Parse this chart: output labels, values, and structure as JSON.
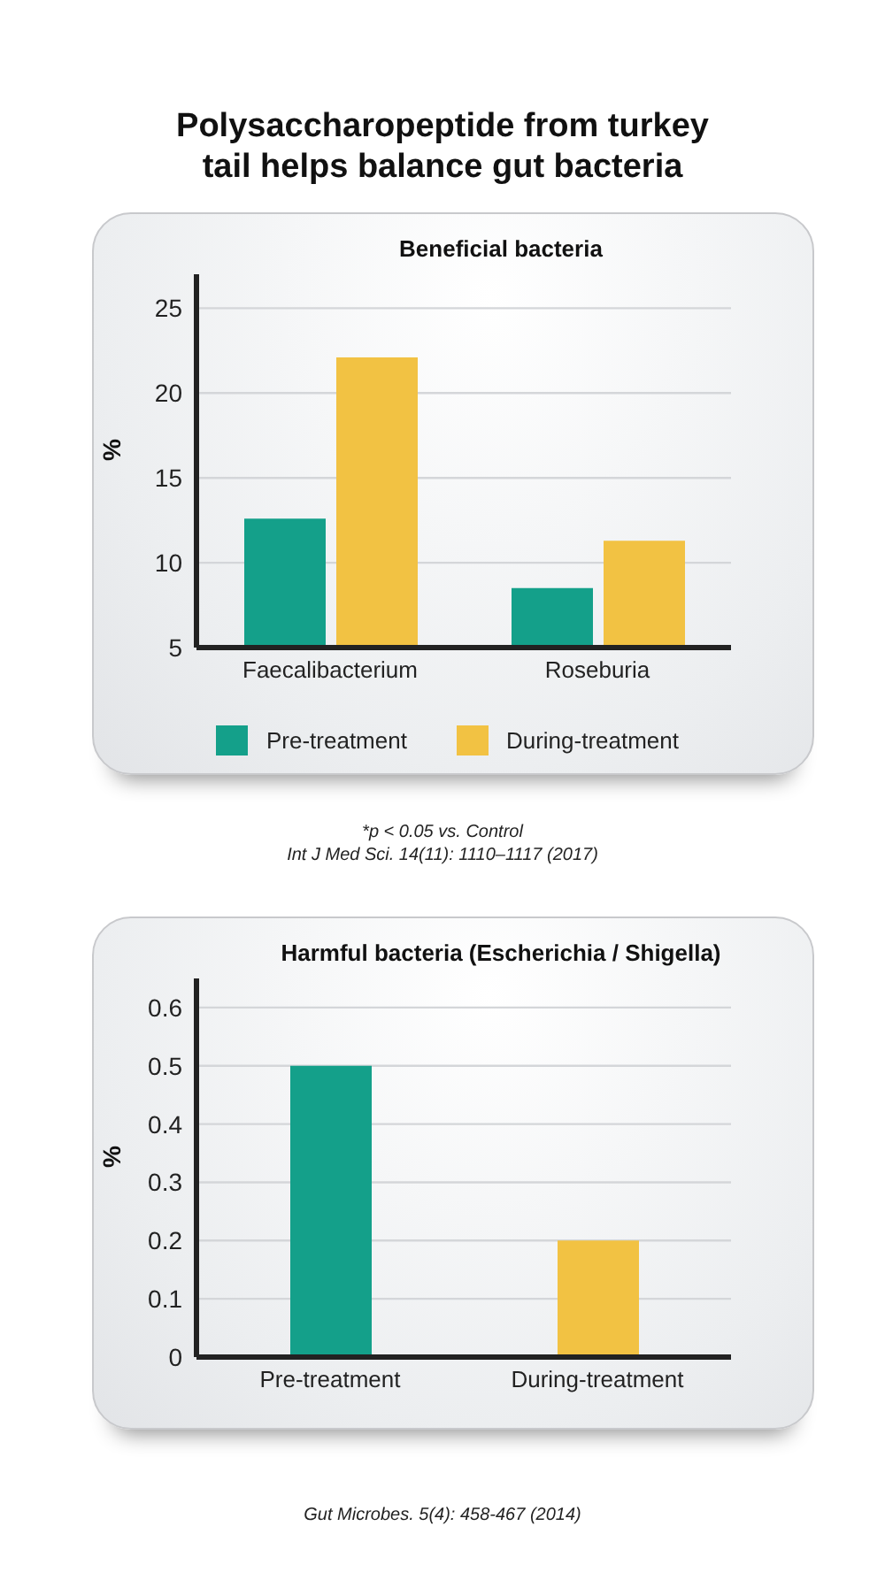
{
  "chart_data": [
    {
      "type": "bar",
      "title": "Polysaccharopeptide from turkey tail helps balance gut bacteria",
      "subtitle": "Beneficial bacteria",
      "ylabel": "%",
      "categories": [
        "Faecalibacterium",
        "Roseburia"
      ],
      "series": [
        {
          "name": "Pre-treatment",
          "color": "#14a08a",
          "values": [
            12.6,
            8.5
          ]
        },
        {
          "name": "During-treatment",
          "color": "#f2c243",
          "values": [
            22.1,
            11.3
          ]
        }
      ],
      "ylim": [
        5,
        27
      ],
      "yticks": [
        5,
        10,
        15,
        20,
        25
      ],
      "grid": "y",
      "legend": "bottom",
      "annotations": [
        "*p < 0.05 vs. Control",
        "Int J Med Sci. 14(11): 1110–1117 (2017)"
      ]
    },
    {
      "type": "bar",
      "subtitle": "Harmful bacteria (Escherichia / Shigella)",
      "ylabel": "%",
      "categories": [
        "Pre-treatment",
        "During-treatment"
      ],
      "values": [
        0.5,
        0.2
      ],
      "colors": [
        "#14a08a",
        "#f2c243"
      ],
      "ylim": [
        0,
        0.65
      ],
      "yticks": [
        0,
        0.1,
        0.2,
        0.3,
        0.4,
        0.5,
        0.6
      ],
      "grid": "y",
      "annotations": [
        "Gut Microbes. 5(4): 458-467 (2014)"
      ]
    }
  ]
}
